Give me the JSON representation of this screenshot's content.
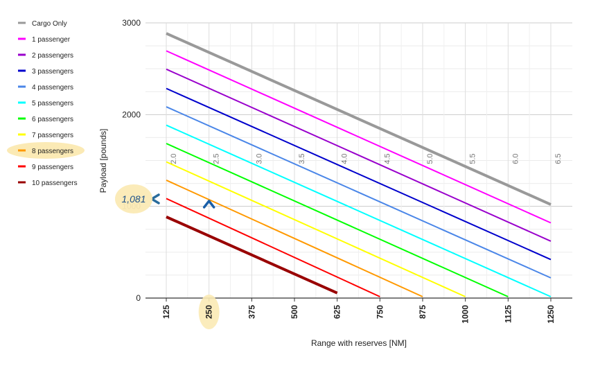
{
  "chart_data": {
    "type": "line",
    "title": "",
    "xlabel": "Range with reserves [NM]",
    "ylabel": "Payload [pounds]",
    "x_ticks": [
      125,
      250,
      375,
      500,
      625,
      750,
      875,
      1000,
      1125,
      1250
    ],
    "xlim": [
      125,
      1250
    ],
    "y_ticks": [
      0,
      1000,
      2000,
      3000
    ],
    "ylim": [
      0,
      3000
    ],
    "grid": true,
    "legend_position": "left",
    "secondary_ticks": [
      {
        "label": "2.0",
        "x": 125
      },
      {
        "label": "2.5",
        "x": 250
      },
      {
        "label": "3.0",
        "x": 375
      },
      {
        "label": "3.5",
        "x": 500
      },
      {
        "label": "4.0",
        "x": 625
      },
      {
        "label": "4.5",
        "x": 750
      },
      {
        "label": "5.0",
        "x": 875
      },
      {
        "label": "5.5",
        "x": 1000
      },
      {
        "label": "6.0",
        "x": 1125
      },
      {
        "label": "6.5",
        "x": 1250
      }
    ],
    "series": [
      {
        "name": "Cargo Only",
        "color": "#999999",
        "x": [
          125,
          1250
        ],
        "y": [
          2885,
          1020
        ],
        "bold": true
      },
      {
        "name": "1 passenger",
        "color": "#ff00ff",
        "x": [
          125,
          1250
        ],
        "y": [
          2695,
          820
        ]
      },
      {
        "name": "2 passengers",
        "color": "#9900cc",
        "x": [
          125,
          1250
        ],
        "y": [
          2495,
          620
        ]
      },
      {
        "name": "3 passengers",
        "color": "#0000cc",
        "x": [
          125,
          1250
        ],
        "y": [
          2285,
          420
        ]
      },
      {
        "name": "4 passengers",
        "color": "#4a86e8",
        "x": [
          125,
          1250
        ],
        "y": [
          2085,
          220
        ]
      },
      {
        "name": "5 passengers",
        "color": "#00ffff",
        "x": [
          125,
          1250
        ],
        "y": [
          1885,
          15
        ]
      },
      {
        "name": "6 passengers",
        "color": "#00ff00",
        "x": [
          125,
          1125
        ],
        "y": [
          1685,
          15
        ]
      },
      {
        "name": "7 passengers",
        "color": "#ffff00",
        "x": [
          125,
          1000
        ],
        "y": [
          1485,
          15
        ]
      },
      {
        "name": "8 passengers",
        "color": "#ff9900",
        "x": [
          125,
          875
        ],
        "y": [
          1285,
          15
        ]
      },
      {
        "name": "9 passengers",
        "color": "#ff0000",
        "x": [
          125,
          750
        ],
        "y": [
          1085,
          15
        ]
      },
      {
        "name": "10 passengers",
        "color": "#990000",
        "x": [
          125,
          625
        ],
        "y": [
          885,
          55
        ],
        "bold": true
      }
    ],
    "highlight_series": "8 passengers",
    "annotation": {
      "label": "1,081",
      "x": 250,
      "y": 1081,
      "highlight_x_tick": "250"
    }
  }
}
